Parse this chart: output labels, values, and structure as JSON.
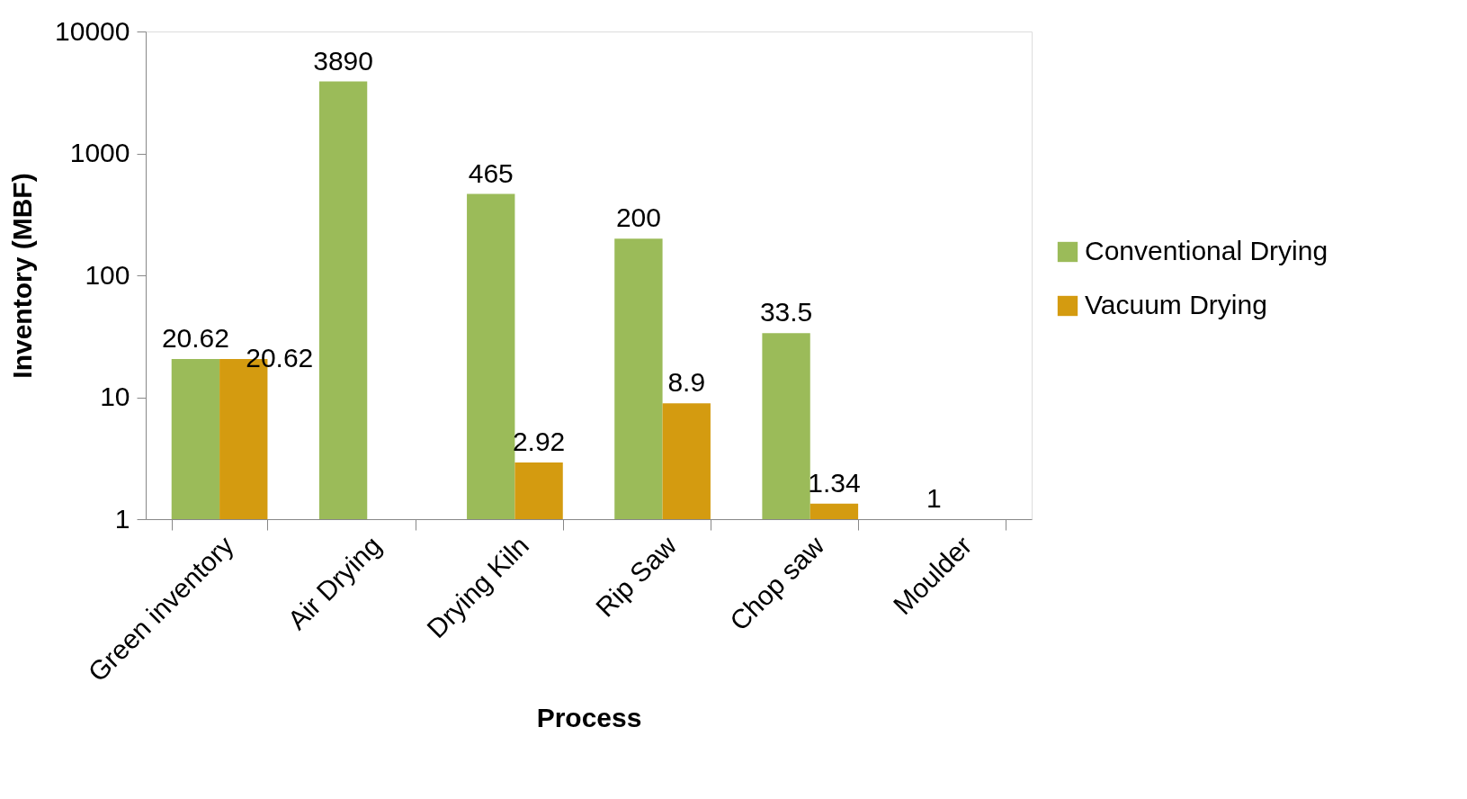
{
  "chart_data": {
    "type": "bar",
    "xlabel": "Process",
    "ylabel": "Inventory (MBF)",
    "categories": [
      "Green inventory",
      "Air Drying",
      "Drying Kiln",
      "Rip Saw",
      "Chop saw",
      "Moulder"
    ],
    "series": [
      {
        "name": "Conventional Drying",
        "color": "#9bbb59",
        "values": [
          20.62,
          3890,
          465,
          200,
          33.5,
          1
        ]
      },
      {
        "name": "Vacuum Drying",
        "color": "#d49b10",
        "values": [
          20.62,
          null,
          2.92,
          8.9,
          1.34,
          null
        ]
      }
    ],
    "log": true,
    "ylim": [
      1,
      10000
    ],
    "yticks": [
      1,
      10,
      100,
      1000,
      10000
    ],
    "grid": false,
    "legend": "right",
    "data_labels": true
  }
}
